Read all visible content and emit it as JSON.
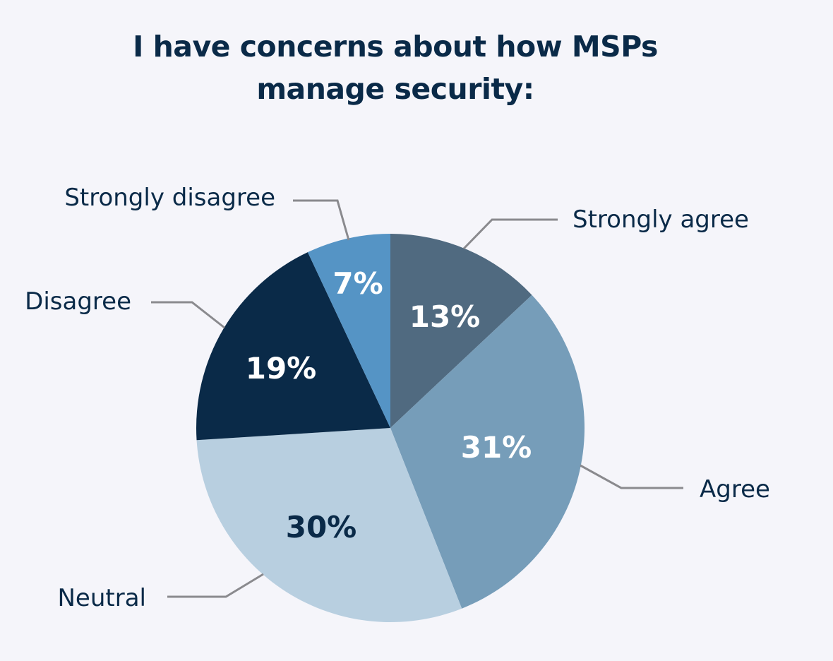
{
  "chart_data": {
    "type": "pie",
    "title": "I have concerns about how MSPs manage security:",
    "slices": [
      {
        "label": "Strongly agree",
        "value": 13,
        "value_label": "13%",
        "color": "#506a80",
        "text_color": "#ffffff"
      },
      {
        "label": "Agree",
        "value": 31,
        "value_label": "31%",
        "color": "#769db9",
        "text_color": "#ffffff"
      },
      {
        "label": "Neutral",
        "value": 30,
        "value_label": "30%",
        "color": "#b8cfe0",
        "text_color": "#0a2a48"
      },
      {
        "label": "Disagree",
        "value": 19,
        "value_label": "19%",
        "color": "#0a2a48",
        "text_color": "#ffffff"
      },
      {
        "label": "Strongly disagree",
        "value": 7,
        "value_label": "7%",
        "color": "#5594c5",
        "text_color": "#ffffff"
      }
    ],
    "start": "top",
    "direction": "clockwise",
    "leader_line_color": "#8a8a8e",
    "background": "#f5f5fa"
  }
}
